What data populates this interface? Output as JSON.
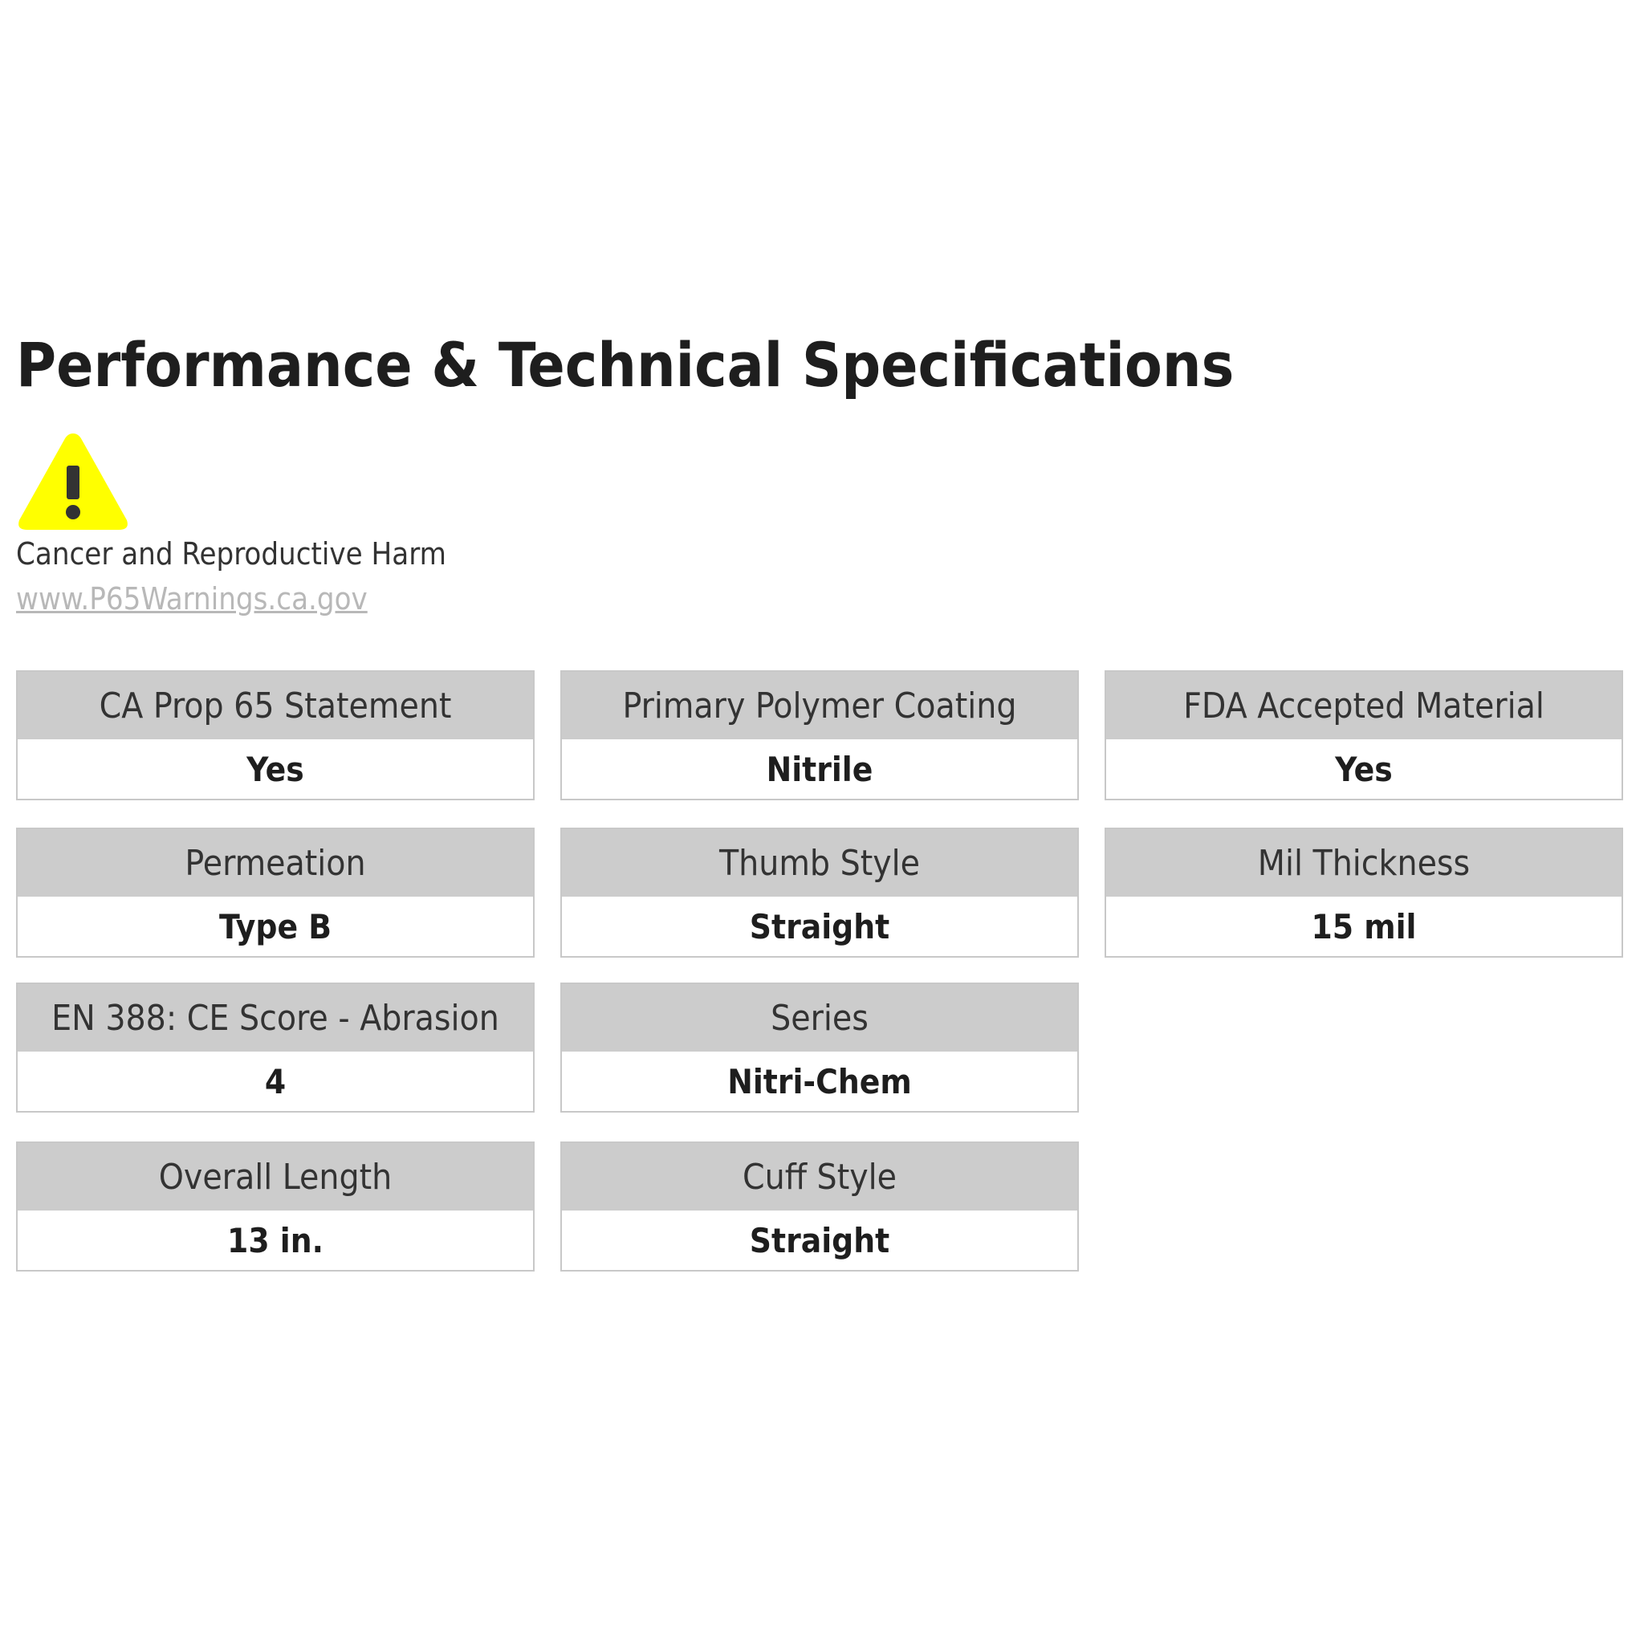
{
  "title": "Performance & Technical Specifications",
  "warning": {
    "icon": "warning-triangle-icon",
    "icon_color": "#ffff00",
    "text": "Cancer and Reproductive Harm",
    "link": "www.P65Warnings.ca.gov"
  },
  "specs": [
    {
      "label": "CA Prop 65 Statement",
      "value": "Yes"
    },
    {
      "label": "Primary Polymer Coating",
      "value": "Nitrile"
    },
    {
      "label": "FDA Accepted Material",
      "value": "Yes"
    },
    {
      "label": "Permeation",
      "value": "Type B"
    },
    {
      "label": "Thumb Style",
      "value": "Straight"
    },
    {
      "label": "Mil Thickness",
      "value": "15 mil"
    },
    {
      "label": "EN 388: CE Score - Abrasion",
      "value": "4"
    },
    {
      "label": "Series",
      "value": "Nitri-Chem"
    },
    {
      "label": "Overall Length",
      "value": "13 in."
    },
    {
      "label": "Cuff Style",
      "value": "Straight"
    }
  ]
}
